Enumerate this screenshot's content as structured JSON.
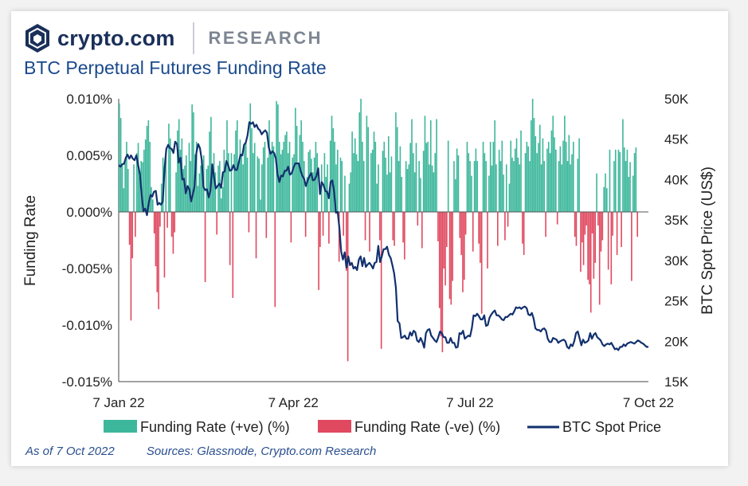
{
  "header": {
    "brand": "crypto.com",
    "section": "RESEARCH",
    "logo_icon": "crypto-com-lion-shield-icon",
    "title": "BTC Perpetual Futures Funding Rate"
  },
  "footer": {
    "as_of": "As of 7 Oct 2022",
    "sources": "Sources: Glassnode, Crypto.com Research"
  },
  "colors": {
    "positive": "#3db79b",
    "negative": "#e0495f",
    "price": "#12306e",
    "axis": "#444444"
  },
  "chart_data": {
    "type": "bar",
    "title": "BTC Perpetual Futures Funding Rate",
    "ylabel": "Funding Rate",
    "y2label": "BTC Spot Price (US$)",
    "ylim": [
      -0.015,
      0.01
    ],
    "y2lim": [
      15000,
      50000
    ],
    "y_ticks": [
      "0.010%",
      "0.005%",
      "0.000%",
      "-0.005%",
      "-0.010%",
      "-0.015%"
    ],
    "y2_ticks": [
      "50K",
      "45K",
      "40K",
      "35K",
      "30K",
      "25K",
      "20K",
      "15K"
    ],
    "x_ticks": [
      "7 Jan 22",
      "7 Apr 22",
      "7 Jul 22",
      "7 Oct 22"
    ],
    "x_range": [
      "2022-01-07",
      "2022-10-07"
    ],
    "legend": [
      "Funding Rate (+ve) (%)",
      "Funding Rate (-ve) (%)",
      "BTC Spot Price"
    ],
    "legend_position": "bottom",
    "grid": false,
    "funding_rate_daily": [
      0.0096,
      0.0083,
      0.0042,
      0.0021,
      0.0045,
      0.0062,
      0.0038,
      -0.0029,
      -0.0096,
      -0.0041,
      0.0042,
      -0.0022,
      0.0052,
      0.0061,
      0.0031,
      0.0045,
      0.0044,
      0.0055,
      0.0064,
      0.0076,
      0.0081,
      0.0062,
      0.0022,
      0.0011,
      -0.0019,
      -0.0048,
      -0.0071,
      -0.0086,
      -0.0013,
      0.0025,
      0.0048,
      -0.0058,
      0.0055,
      -0.0014,
      0.0078,
      0.0065,
      -0.0022,
      -0.0037,
      -0.0018,
      0.0035,
      0.0072,
      0.0082,
      0.0055,
      0.0065,
      0.0038,
      0.0041,
      0.005,
      0.0022,
      0.0061,
      0.0045,
      0.0095,
      0.0088,
      0.0051,
      0.0062,
      0.0023,
      0.0034,
      0.0041,
      0.0046,
      0.005,
      -0.0062,
      0.0038,
      0.0041,
      0.0071,
      0.0084,
      0.0042,
      0.0052,
      0.0035,
      -0.002,
      0.0041,
      0.0045,
      0.0012,
      0.0022,
      0.0055,
      0.0042,
      0.0081,
      0.0052,
      -0.0047,
      0.0052,
      -0.0076,
      0.0051,
      0.0072,
      0.0081,
      0.0043,
      0.0064,
      0.0051,
      0.0042,
      0.0059,
      0.0062,
      0.0048,
      -0.0018,
      0.0096,
      0.0074,
      0.0052,
      0.0061,
      -0.0041,
      0.0049,
      0.0047,
      0.0011,
      0.0042,
      0.0057,
      0.0062,
      -0.0023,
      0.0048,
      0.0081,
      0.0052,
      0.0062,
      0.0058,
      -0.0084,
      0.0098,
      0.0095,
      0.0062,
      0.0051,
      0.0055,
      0.0062,
      0.0068,
      0.0071,
      0.0052,
      0.0062,
      -0.0027,
      0.0048,
      0.0051,
      0.0092,
      0.0076,
      0.0042,
      0.0068,
      0.0081,
      0.0062,
      0.0045,
      -0.0022,
      0.0031,
      0.0053,
      0.0055,
      0.0047,
      0.0035,
      0.0048,
      0.0062,
      0.0052,
      -0.0069,
      -0.0031,
      0.0042,
      -0.0021,
      0.0052,
      0.0031,
      0.0042,
      -0.0028,
      0.0063,
      0.0085,
      0.0074,
      0.0062,
      0.0042,
      0.0055,
      -0.0044,
      0.0048,
      0.0045,
      -0.0021,
      0.0032,
      -0.0052,
      -0.0132,
      0.0025,
      0.0035,
      0.0071,
      0.0052,
      0.0065,
      0.0051,
      0.0045,
      0.0088,
      0.01,
      0.0062,
      0.0045,
      -0.0025,
      0.0085,
      0.0075,
      -0.0035,
      0.0052,
      0.0055,
      0.0071,
      0.0062,
      0.0025,
      0.0042,
      -0.0025,
      -0.0121,
      0.0054,
      0.0062,
      0.0048,
      0.0033,
      0.0067,
      0.0035,
      0.0049,
      -0.0025,
      -0.003,
      0.0088,
      0.0075,
      0.0045,
      0.0058,
      0.0031,
      -0.0027,
      -0.0042,
      0.0045,
      0.0038,
      0.0042,
      0.0061,
      0.0082,
      0.0052,
      0.0035,
      0.0061,
      -0.0012,
      0.0045,
      0.003,
      -0.0032,
      0.0054,
      0.0085,
      0.0061,
      0.0062,
      0.0042,
      0.0081,
      0.0041,
      0.0035,
      0.0052,
      0.0082,
      -0.0026,
      -0.0085,
      -0.011,
      -0.0124,
      -0.005,
      -0.0065,
      -0.0031,
      0.0063,
      -0.0077,
      -0.0082,
      -0.0061,
      0.0045,
      0.0029,
      0.0056,
      0.005,
      -0.0023,
      -0.0038,
      -0.0071,
      -0.006,
      -0.002,
      0.0062,
      0.0052,
      0.0045,
      0.0032,
      -0.0035,
      0.0045,
      0.0056,
      0.0045,
      -0.0028,
      -0.0045,
      -0.009,
      0.0062,
      0.0052,
      0.0045,
      -0.005,
      0.0032,
      0.0062,
      0.0041,
      0.0062,
      0.0081,
      0.0042,
      -0.003,
      0.0055,
      0.0045,
      0.0063,
      0.0033,
      -0.0025,
      0.0042,
      -0.0013,
      0.0025,
      0.0063,
      0.0048,
      0.0045,
      0.0056,
      0.0065,
      0.0048,
      0.0042,
      0.0072,
      -0.0028,
      -0.0038,
      0.0052,
      0.0062,
      0.0058,
      0.0045,
      0.0081,
      0.01,
      0.0083,
      0.0067,
      0.0052,
      0.0061,
      0.0077,
      0.0042,
      0.0065,
      0.0045,
      -0.0022,
      0.0056,
      0.0062,
      0.0052,
      0.0072,
      0.0085,
      0.0066,
      0.0055,
      -0.0011,
      0.0045,
      0.0058,
      0.0042,
      0.0063,
      0.0085,
      0.0062,
      0.0045,
      0.0068,
      0.0042,
      0.0051,
      0.0062,
      -0.0022,
      -0.003,
      0.0047,
      0.0065,
      -0.0053,
      -0.0027,
      -0.0047,
      -0.002,
      -0.0012,
      -0.006,
      -0.0064,
      -0.0089,
      -0.0019,
      -0.0059,
      -0.0045,
      0.0034,
      -0.0012,
      -0.0082,
      -0.0035,
      -0.0025,
      0.0022,
      0.0034,
      0.0021,
      -0.0051,
      0.0055,
      -0.0064,
      -0.0021,
      0.0045,
      0.0055,
      -0.0038,
      0.0055,
      0.0053,
      -0.0031,
      0.0082,
      0.0057,
      0.0045,
      0.0055,
      0.0031,
      0.0044,
      -0.0061,
      0.0032,
      0.0052,
      0.0057,
      -0.0022
    ],
    "btc_price_daily": [
      41800,
      41600,
      41900,
      41950,
      42700,
      43100,
      42600,
      43000,
      42600,
      42400,
      43000,
      41800,
      40700,
      38200,
      36100,
      36400,
      35600,
      37100,
      38100,
      37900,
      38500,
      38600,
      36900,
      37100,
      36900,
      37300,
      41400,
      43800,
      44300,
      43900,
      43800,
      43300,
      44700,
      44400,
      42100,
      42700,
      40000,
      40100,
      38300,
      39200,
      38800,
      37300,
      38200,
      39200,
      43300,
      44400,
      43900,
      42500,
      39100,
      38700,
      38800,
      37800,
      38700,
      41900,
      40300,
      38900,
      39200,
      39500,
      39000,
      40900,
      41000,
      42300,
      41800,
      41100,
      41200,
      41800,
      41200,
      41200,
      42100,
      43100,
      43000,
      44300,
      44600,
      45500,
      47100,
      46900,
      47100,
      46500,
      46800,
      46300,
      46100,
      45600,
      45900,
      46100,
      45800,
      44000,
      43200,
      43500,
      43300,
      42600,
      40600,
      39700,
      40500,
      40400,
      41100,
      41100,
      41600,
      40600,
      40800,
      41500,
      42000,
      42000,
      42000,
      41100,
      40500,
      40100,
      39200,
      39900,
      40400,
      40800,
      39900,
      40000,
      40500,
      41400,
      38200,
      39700,
      39300,
      38600,
      38500,
      37700,
      39700,
      39900,
      38500,
      35900,
      36000,
      34000,
      31100,
      30100,
      31000,
      29100,
      30500,
      29400,
      29700,
      29000,
      29200,
      28800,
      30100,
      30500,
      29300,
      30300,
      29200,
      29500,
      29700,
      29400,
      29000,
      29700,
      29800,
      31800,
      29800,
      30500,
      31400,
      31400,
      31700,
      30700,
      30300,
      29400,
      28400,
      26600,
      22500,
      22200,
      20400,
      20500,
      20700,
      20300,
      20300,
      21100,
      20700,
      21300,
      21100,
      20100,
      19900,
      20400,
      19900,
      19200,
      21000,
      21400,
      21500,
      20700,
      20400,
      20100,
      19900,
      20500,
      21200,
      21000,
      20500,
      20500,
      19800,
      19800,
      20400,
      19800,
      19800,
      19200,
      19300,
      21000,
      20900,
      21300,
      20300,
      20500,
      20700,
      20600,
      21600,
      23200,
      23100,
      23400,
      23100,
      22700,
      22700,
      23200,
      21900,
      22000,
      22900,
      23300,
      23600,
      23800,
      23200,
      23200,
      23000,
      22700,
      22600,
      23000,
      23000,
      23200,
      23400,
      23300,
      23700,
      24200,
      24100,
      24200,
      24000,
      24200,
      24300,
      24100,
      23300,
      23200,
      23500,
      22800,
      21600,
      21400,
      21400,
      21200,
      21500,
      21600,
      21300,
      20300,
      19900,
      19900,
      20400,
      20300,
      20200,
      19800,
      20000,
      20100,
      20200,
      20000,
      19300,
      19100,
      19600,
      19400,
      20000,
      21000,
      21200,
      20400,
      19500,
      20200,
      19800,
      19900,
      20100,
      21000,
      20300,
      20800,
      21000,
      20500,
      20300,
      20100,
      19600,
      19400,
      19600,
      19700,
      19600,
      19800,
      19400,
      19000,
      19100,
      18900,
      19300,
      19300,
      19600,
      19400,
      19700,
      19800,
      19900,
      19800,
      19700,
      19900,
      20100,
      20000,
      19800,
      19700,
      19500,
      19300,
      19300
    ],
    "funding_sample_every_days": 0.75
  }
}
